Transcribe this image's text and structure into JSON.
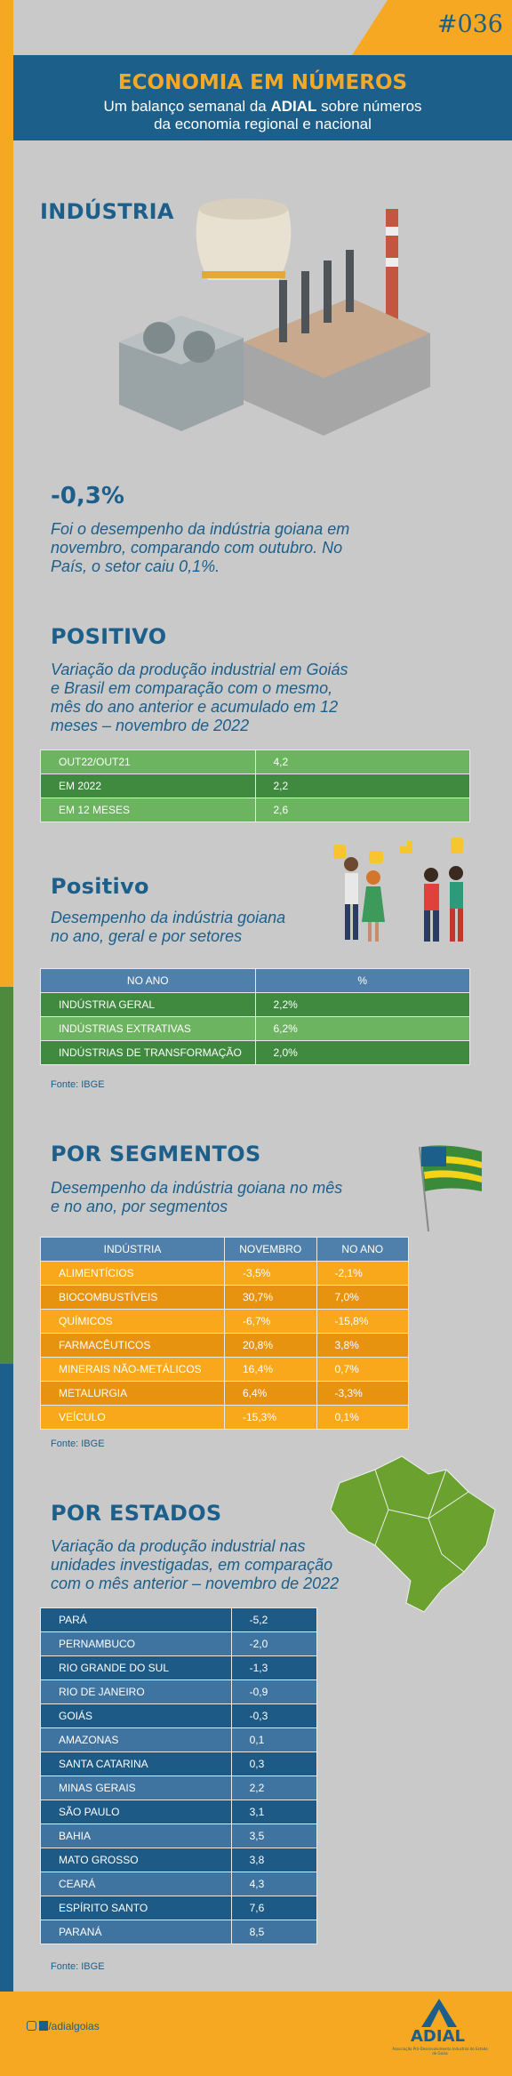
{
  "header": {
    "issue": "#036",
    "title": "ECONOMIA EM NÚMEROS",
    "subtitle_1": "Um balanço semanal da ",
    "subtitle_bold": "ADIAL",
    "subtitle_2": " sobre números",
    "subtitle_line2": "da economia regional e nacional"
  },
  "industria": {
    "title": "INDÚSTRIA",
    "value": "-0,3%",
    "text": [
      "Foi o desempenho da indústria goiana em",
      "novembro, comparando com outubro. No",
      "País, o setor caiu 0,1%."
    ]
  },
  "positivo": {
    "title": "POSITIVO",
    "text": [
      "Variação da produção industrial em Goiás",
      "e Brasil em comparação com o mesmo,",
      "mês do ano anterior e acumulado em 12",
      "meses – novembro de 2022"
    ],
    "table": {
      "rows": [
        [
          "OUT22/OUT21",
          "4,2"
        ],
        [
          "EM 2022",
          "2,2"
        ],
        [
          "EM 12 MESES",
          "2,6"
        ]
      ]
    }
  },
  "positivo_setores": {
    "title": "Positivo",
    "text": [
      "Desempenho da indústria goiana",
      "no ano, geral e por setores"
    ],
    "table": {
      "header": [
        "NO ANO",
        "%"
      ],
      "rows": [
        [
          "INDÚSTRIA GERAL",
          "2,2%"
        ],
        [
          "INDÚSTRIAS EXTRATIVAS",
          "6,2%"
        ],
        [
          "INDÚSTRIAS DE TRANSFORMAÇÃO",
          "2,0%"
        ]
      ]
    },
    "source": "Fonte: IBGE"
  },
  "segmentos": {
    "title": "POR SEGMENTOS",
    "text": [
      "Desempenho da indústria goiana no mês",
      "e no ano, por segmentos"
    ],
    "table": {
      "header": [
        "INDÚSTRIA",
        "NOVEMBRO",
        "NO ANO"
      ],
      "rows": [
        [
          "ALIMENTÍCIOS",
          "-3,5%",
          "-2,1%"
        ],
        [
          "BIOCOMBUSTÍVEIS",
          "30,7%",
          "7,0%"
        ],
        [
          "QUÍMICOS",
          "-6,7%",
          "-15,8%"
        ],
        [
          "FARMACÊUTICOS",
          "20,8%",
          "3,8%"
        ],
        [
          "MINERAIS NÃO-METÁLICOS",
          "16,4%",
          "0,7%"
        ],
        [
          "METALURGIA",
          "6,4%",
          "-3,3%"
        ],
        [
          "VEÍCULO",
          "-15,3%",
          "0,1%"
        ]
      ]
    },
    "source": "Fonte: IBGE"
  },
  "estados": {
    "title": "POR ESTADOS",
    "text": [
      "Variação da produção industrial nas",
      "unidades investigadas, em comparação",
      "com o mês anterior – novembro de 2022"
    ],
    "table": {
      "rows": [
        [
          "PARÁ",
          "-5,2"
        ],
        [
          "PERNAMBUCO",
          "-2,0"
        ],
        [
          "RIO GRANDE DO SUL",
          "-1,3"
        ],
        [
          "RIO DE JANEIRO",
          "-0,9"
        ],
        [
          "GOIÁS",
          "-0,3"
        ],
        [
          "AMAZONAS",
          "0,1"
        ],
        [
          "SANTA CATARINA",
          "0,3"
        ],
        [
          "MINAS GERAIS",
          "2,2"
        ],
        [
          "SÃO PAULO",
          "3,1"
        ],
        [
          "BAHIA",
          "3,5"
        ],
        [
          "MATO GROSSO",
          "3,8"
        ],
        [
          "CEARÁ",
          "4,3"
        ],
        [
          "ESPÍRITO SANTO",
          "7,6"
        ],
        [
          "PARANÁ",
          "8,5"
        ]
      ]
    },
    "source": "Fonte: IBGE"
  },
  "footer": {
    "social": "/adialgoias",
    "logo": "ADIAL",
    "logo_sub": "Associação Pró-Desenvolvimento Industrial do Estado de Goiás"
  }
}
